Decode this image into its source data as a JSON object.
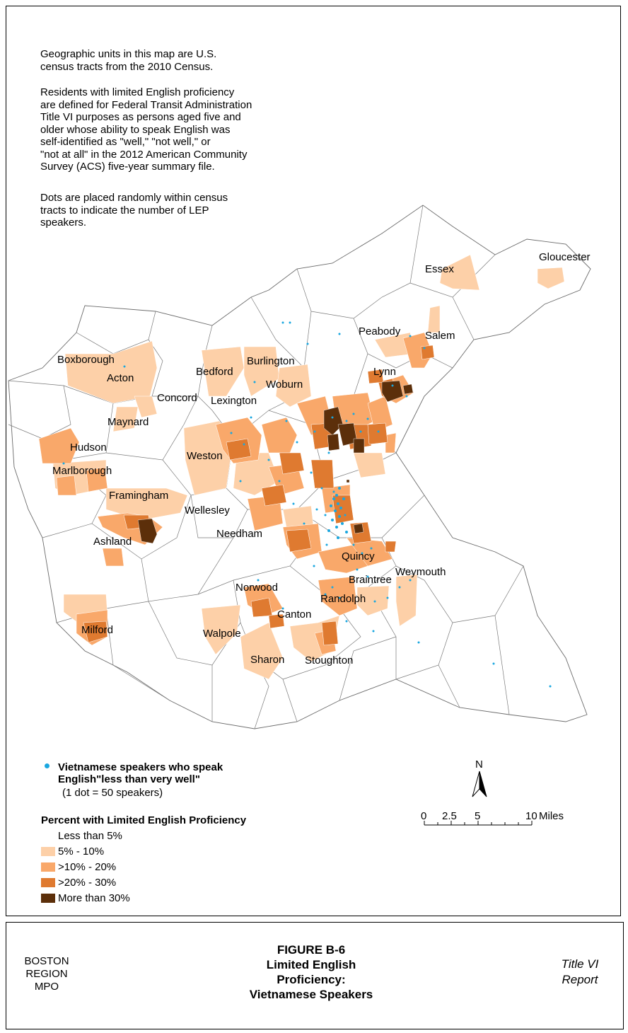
{
  "notes": [
    "Geographic units in this map are U.S.\ncensus tracts from the 2010 Census.",
    "Residents with limited English proficiency\nare defined for Federal Transit Administration\nTitle VI purposes as persons aged five and\nolder whose ability to speak English was\nself-identified as \"well,\" \"not well,\" or\n\"not at all\" in the 2012 American Community\nSurvey (ACS) five-year summary file.",
    "Dots are placed randomly within census\ntracts to indicate the number of LEP\nspeakers."
  ],
  "places": [
    "Gloucester",
    "Essex",
    "Peabody",
    "Salem",
    "Boxborough",
    "Burlington",
    "Bedford",
    "Lynn",
    "Acton",
    "Woburn",
    "Concord",
    "Lexington",
    "Maynard",
    "Hudson",
    "Weston",
    "Marlborough",
    "Framingham",
    "Wellesley",
    "Needham",
    "Ashland",
    "Quincy",
    "Weymouth",
    "Braintree",
    "Norwood",
    "Randolph",
    "Canton",
    "Milford",
    "Walpole",
    "Sharon",
    "Stoughton"
  ],
  "legend": {
    "dot_title": "Vietnamese speakers who speak\nEnglish\"less than very well\"",
    "dot_note": "(1 dot = 50 speakers)",
    "dot_color": "#1aa7e0",
    "percent_title": "Percent with Limited English Proficiency",
    "classes": [
      {
        "label": "Less than 5%",
        "color": "#ffffff"
      },
      {
        "label": "5% - 10%",
        "color": "#fdd0a8"
      },
      {
        "label": ">10% - 20%",
        "color": "#f9a86a"
      },
      {
        "label": ">20% - 30%",
        "color": "#df7a30"
      },
      {
        "label": "More than 30%",
        "color": "#5c2f0a"
      }
    ]
  },
  "north_label": "N",
  "scale": {
    "ticks": [
      "0",
      "2.5",
      "5",
      "10"
    ],
    "unit": "Miles"
  },
  "footer": {
    "org": "BOSTON\nREGION\nMPO",
    "figure": "FIGURE B-6\nLimited English\nProficiency:\nVietnamese Speakers",
    "report": "Title VI\nReport"
  }
}
